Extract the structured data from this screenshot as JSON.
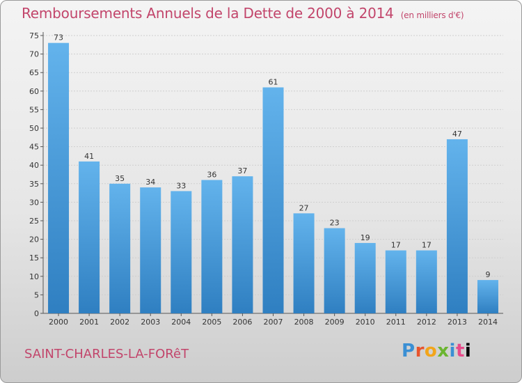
{
  "header": {
    "title": "Remboursements Annuels de la Dette de 2000 à 2014",
    "unit": "(en milliers d'€)"
  },
  "footer": {
    "city": "SAINT-CHARLES-LA-FORêT",
    "logo": [
      "P",
      "r",
      "o",
      "x",
      "i",
      "t",
      "i"
    ]
  },
  "colors": {
    "bar_light": "#63b3ec",
    "bar_dark": "#2f7fc1",
    "title": "#c2456b"
  },
  "chart_data": {
    "type": "bar",
    "title": "Remboursements Annuels de la Dette de 2000 à 2014",
    "xlabel": "",
    "ylabel": "",
    "categories": [
      "2000",
      "2001",
      "2002",
      "2003",
      "2004",
      "2005",
      "2006",
      "2007",
      "2008",
      "2009",
      "2010",
      "2011",
      "2012",
      "2013",
      "2014"
    ],
    "values": [
      73,
      41,
      35,
      34,
      33,
      36,
      37,
      61,
      27,
      23,
      19,
      17,
      17,
      47,
      9
    ],
    "ylim": [
      0,
      75
    ],
    "yticks": [
      0,
      5,
      10,
      15,
      20,
      25,
      30,
      35,
      40,
      45,
      50,
      55,
      60,
      65,
      70,
      75
    ],
    "grid": true
  }
}
